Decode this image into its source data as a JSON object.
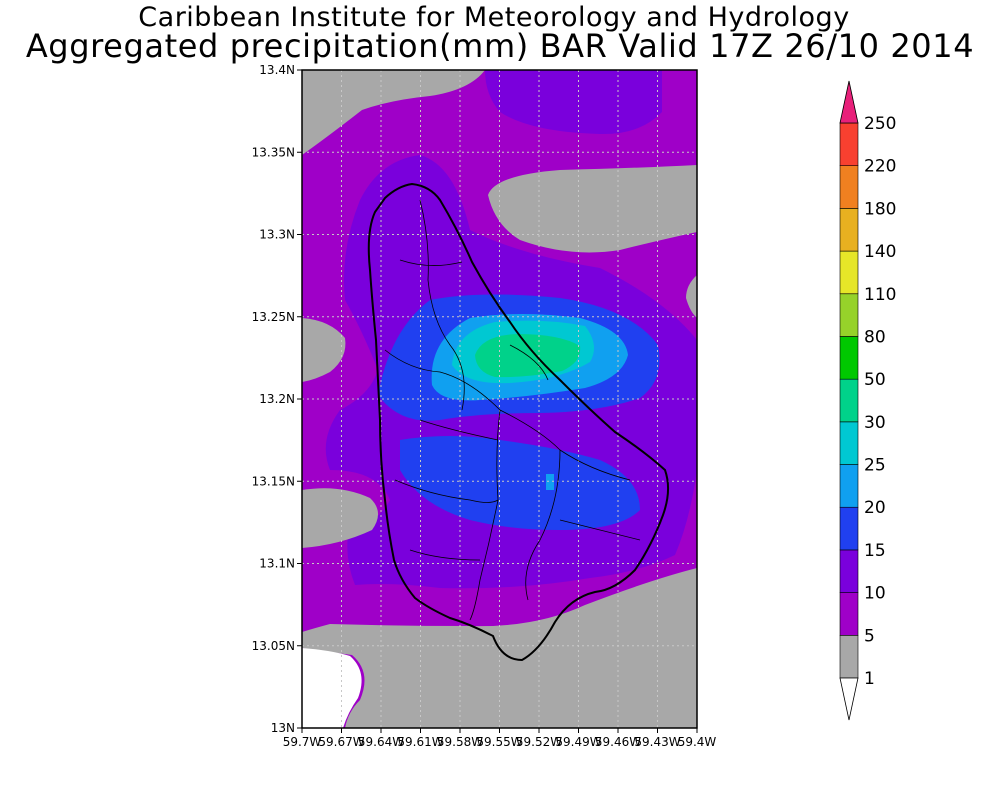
{
  "header": {
    "title": "Caribbean Institute for Meteorology and Hydrology",
    "subtitle": "Aggregated precipitation(mm) BAR Valid 17Z 26/10 2014"
  },
  "map": {
    "lat_labels": [
      "13.4N",
      "13.35N",
      "13.3N",
      "13.25N",
      "13.2N",
      "13.15N",
      "13.1N",
      "13.05N",
      "13N"
    ],
    "lon_labels": [
      "59.7W",
      "59.67W",
      "59.64W",
      "59.61W",
      "59.58W",
      "59.55W",
      "59.52W",
      "59.49W",
      "59.46W",
      "59.43W",
      "59.4W"
    ]
  },
  "colorbar": {
    "levels": [
      "1",
      "5",
      "10",
      "15",
      "20",
      "25",
      "30",
      "50",
      "80",
      "110",
      "140",
      "180",
      "220",
      "250"
    ],
    "colors": {
      "below_1": "#ffffff",
      "1_5": "#a8a8a8",
      "5_10": "#9f00c8",
      "10_15": "#7a00dc",
      "15_20": "#2040f0",
      "20_25": "#10a0f0",
      "25_30": "#00c8d2",
      "30_50": "#00d28a",
      "50_80": "#00c800",
      "80_110": "#96d22a",
      "110_140": "#e6e628",
      "140_180": "#e8b020",
      "180_220": "#f08020",
      "220_250": "#f84030",
      "above_250": "#e8207a"
    }
  },
  "colors": {
    "coastline": "#000000",
    "grid": "#c8c8c8"
  }
}
